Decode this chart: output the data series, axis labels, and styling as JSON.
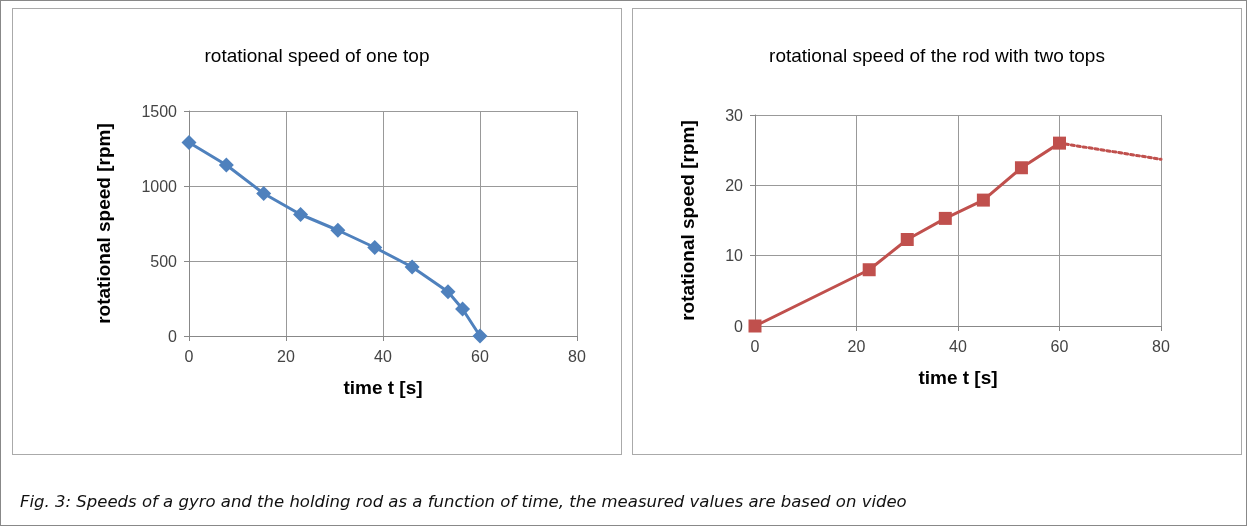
{
  "chart_data": [
    {
      "type": "line",
      "title": "rotational speed of one top",
      "xlabel": "time t [s]",
      "ylabel": "rotational speed [rpm]",
      "x": [
        0,
        7.7,
        15.4,
        23,
        30.7,
        38.3,
        46,
        53.4,
        56.4,
        60
      ],
      "series": [
        {
          "color": "#4f81bd",
          "values": [
            1290,
            1140,
            950,
            810,
            705,
            590,
            460,
            295,
            180,
            0
          ],
          "marker": "diamond"
        }
      ],
      "xlim": [
        0,
        80
      ],
      "xticks": [
        0,
        20,
        40,
        60,
        80
      ],
      "ylim": [
        0,
        1500
      ],
      "yticks": [
        0,
        500,
        1000,
        1500
      ],
      "grid": true,
      "annotations": [
        "Fig. 3: Speeds of a gyro and the holding rod as a function of time, the measured values are based on video"
      ]
    },
    {
      "type": "line",
      "title": "rotational speed of the rod with two tops",
      "xlabel": "time t [s]",
      "ylabel": "rotational speed [rpm]",
      "series": [
        {
          "color": "#c0504d",
          "x": [
            0,
            22.5,
            30,
            37.5,
            45,
            52.5,
            60
          ],
          "values": [
            0,
            8,
            12.3,
            15.3,
            17.9,
            22.5,
            26
          ],
          "marker": "square",
          "line_style": "solid"
        },
        {
          "color": "#c0504d",
          "x": [
            60,
            80
          ],
          "values": [
            26,
            23.7
          ],
          "marker": "none",
          "line_style": "dotted"
        }
      ],
      "xlim": [
        0,
        80
      ],
      "xticks": [
        0,
        20,
        40,
        60,
        80
      ],
      "ylim": [
        0,
        30
      ],
      "yticks": [
        0,
        10,
        20,
        30
      ],
      "grid": true
    }
  ]
}
